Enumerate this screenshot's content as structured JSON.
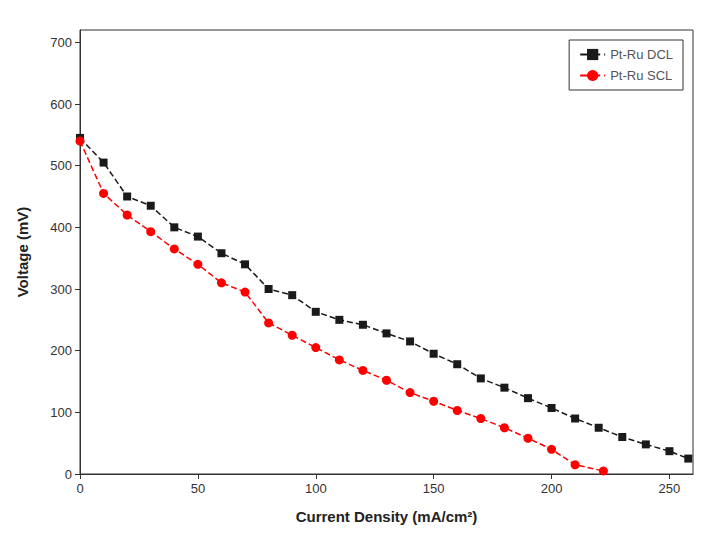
{
  "chart_data": {
    "type": "line",
    "x_label": "Current Density (mA/cm²)",
    "y_label": "Voltage (mV)",
    "series": [
      {
        "name": "Pt-Ru DCL",
        "color": "#1a1a1a",
        "marker": "square",
        "line_style": "dashed",
        "x": [
          0,
          10,
          20,
          30,
          40,
          50,
          60,
          70,
          80,
          90,
          100,
          110,
          120,
          130,
          140,
          150,
          160,
          170,
          180,
          190,
          200,
          210,
          220,
          230,
          240,
          250,
          258
        ],
        "values": [
          545,
          505,
          450,
          435,
          400,
          385,
          358,
          340,
          300,
          290,
          263,
          250,
          242,
          228,
          215,
          195,
          178,
          155,
          140,
          123,
          107,
          90,
          75,
          60,
          48,
          37,
          25
        ]
      },
      {
        "name": "Pt-Ru SCL",
        "color": "#ff0000",
        "marker": "circle",
        "line_style": "dashed",
        "x": [
          0,
          10,
          20,
          30,
          40,
          50,
          60,
          70,
          80,
          90,
          100,
          110,
          120,
          130,
          140,
          150,
          160,
          170,
          180,
          190,
          200,
          210,
          222
        ],
        "values": [
          540,
          455,
          420,
          393,
          365,
          340,
          310,
          295,
          245,
          225,
          205,
          185,
          168,
          152,
          132,
          118,
          103,
          90,
          75,
          58,
          40,
          15,
          5
        ]
      }
    ],
    "xlim": [
      0,
      260
    ],
    "ylim": [
      0,
      720
    ],
    "xticks": [
      0,
      50,
      100,
      150,
      200,
      250
    ],
    "yticks": [
      0,
      100,
      200,
      300,
      400,
      500,
      600,
      700
    ],
    "legend": "upper right",
    "grid": false
  }
}
